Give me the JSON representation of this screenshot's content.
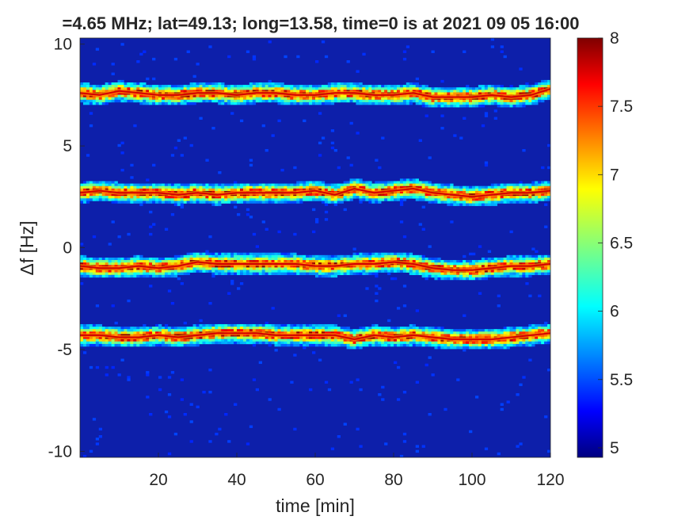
{
  "chart_data": {
    "type": "heatmap",
    "title": "=4.65 MHz;  lat=49.13; long=13.58, time=0 is at 2021 09 05 16:00",
    "xlabel": "time [min]",
    "ylabel": "Δf [Hz]",
    "xlim": [
      0,
      120
    ],
    "ylim": [
      -10.3,
      10.3
    ],
    "xticks": [
      20,
      40,
      60,
      80,
      100,
      120
    ],
    "yticks": [
      10,
      5,
      0,
      -5,
      -10
    ],
    "colorbar": {
      "colormap": "jet",
      "range": [
        4.93,
        8
      ],
      "ticks": [
        8,
        7.5,
        7,
        6.5,
        6,
        5.5,
        5
      ]
    },
    "background_level": 5.0,
    "series": [
      {
        "x": [
          0,
          5,
          10,
          15,
          20,
          25,
          30,
          35,
          40,
          45,
          50,
          55,
          60,
          65,
          70,
          75,
          80,
          85,
          90,
          95,
          100,
          105,
          110,
          115,
          120
        ],
        "y": [
          7.6,
          7.5,
          7.7,
          7.6,
          7.5,
          7.5,
          7.6,
          7.6,
          7.5,
          7.6,
          7.6,
          7.5,
          7.5,
          7.6,
          7.6,
          7.5,
          7.5,
          7.6,
          7.4,
          7.4,
          7.4,
          7.5,
          7.4,
          7.5,
          7.8
        ]
      },
      {
        "x": [
          0,
          5,
          10,
          15,
          20,
          25,
          30,
          35,
          40,
          45,
          50,
          55,
          60,
          65,
          70,
          75,
          80,
          85,
          90,
          95,
          100,
          105,
          110,
          115,
          120
        ],
        "y": [
          2.7,
          2.8,
          2.7,
          2.7,
          2.7,
          2.6,
          2.7,
          2.6,
          2.7,
          2.7,
          2.7,
          2.7,
          2.8,
          2.6,
          2.9,
          2.7,
          2.8,
          2.9,
          2.7,
          2.6,
          2.5,
          2.6,
          2.7,
          2.7,
          2.8
        ]
      },
      {
        "x": [
          0,
          5,
          10,
          15,
          20,
          25,
          30,
          35,
          40,
          45,
          50,
          55,
          60,
          65,
          70,
          75,
          80,
          85,
          90,
          95,
          100,
          105,
          110,
          115,
          120
        ],
        "y": [
          -0.9,
          -1.0,
          -1.0,
          -0.9,
          -1.0,
          -0.9,
          -0.7,
          -0.8,
          -0.8,
          -0.8,
          -0.8,
          -0.8,
          -0.9,
          -0.9,
          -0.8,
          -0.8,
          -0.7,
          -0.8,
          -1.0,
          -1.1,
          -1.1,
          -1.0,
          -0.9,
          -0.9,
          -0.8
        ]
      },
      {
        "x": [
          0,
          5,
          10,
          15,
          20,
          25,
          30,
          35,
          40,
          45,
          50,
          55,
          60,
          65,
          70,
          75,
          80,
          85,
          90,
          95,
          100,
          105,
          110,
          115,
          120
        ],
        "y": [
          -4.3,
          -4.3,
          -4.4,
          -4.4,
          -4.3,
          -4.4,
          -4.3,
          -4.2,
          -4.2,
          -4.2,
          -4.3,
          -4.3,
          -4.3,
          -4.3,
          -4.5,
          -4.3,
          -4.4,
          -4.3,
          -4.4,
          -4.5,
          -4.5,
          -4.5,
          -4.4,
          -4.3,
          -4.2
        ]
      }
    ]
  }
}
